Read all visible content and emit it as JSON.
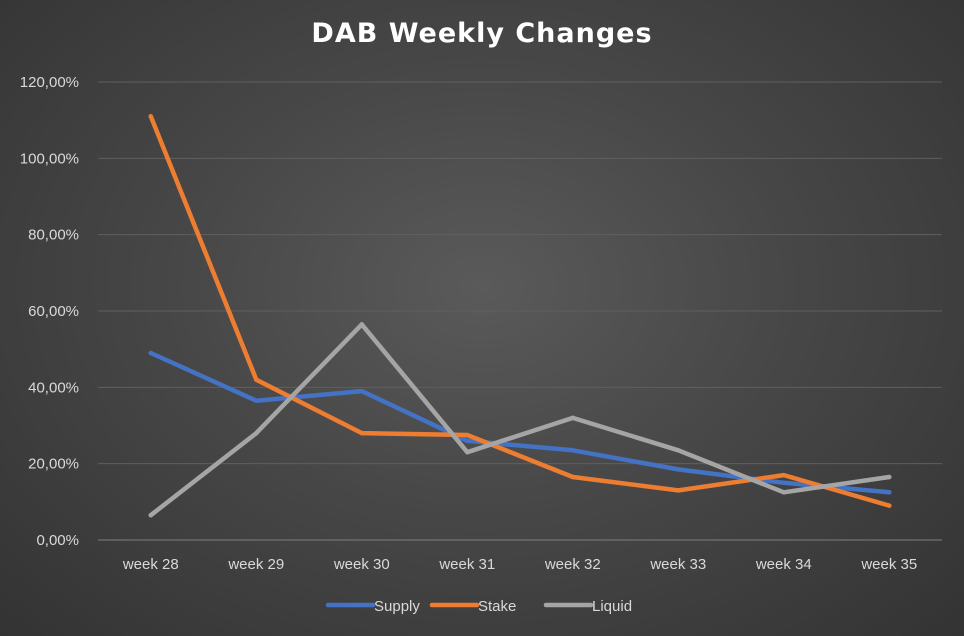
{
  "chart_data": {
    "type": "line",
    "title": "DAB Weekly Changes",
    "xlabel": "",
    "ylabel": "",
    "categories": [
      "week 28",
      "week 29",
      "week 30",
      "week 31",
      "week 32",
      "week 33",
      "week 34",
      "week 35"
    ],
    "ylim": [
      0,
      120
    ],
    "yticks": [
      0,
      20,
      40,
      60,
      80,
      100,
      120
    ],
    "ytick_labels": [
      "0,00%",
      "20,00%",
      "40,00%",
      "60,00%",
      "80,00%",
      "100,00%",
      "120,00%"
    ],
    "grid": true,
    "legend_position": "bottom",
    "series": [
      {
        "name": "Supply",
        "color": "#4472c4",
        "values": [
          49.0,
          36.5,
          39.0,
          26.0,
          23.5,
          18.5,
          15.0,
          12.5
        ]
      },
      {
        "name": "Stake",
        "color": "#ed7d31",
        "values": [
          111.0,
          42.0,
          28.0,
          27.5,
          16.5,
          13.0,
          17.0,
          9.0
        ]
      },
      {
        "name": "Liquid",
        "color": "#a5a5a5",
        "values": [
          6.5,
          28.0,
          56.5,
          23.0,
          32.0,
          23.5,
          12.5,
          16.5
        ]
      }
    ]
  }
}
